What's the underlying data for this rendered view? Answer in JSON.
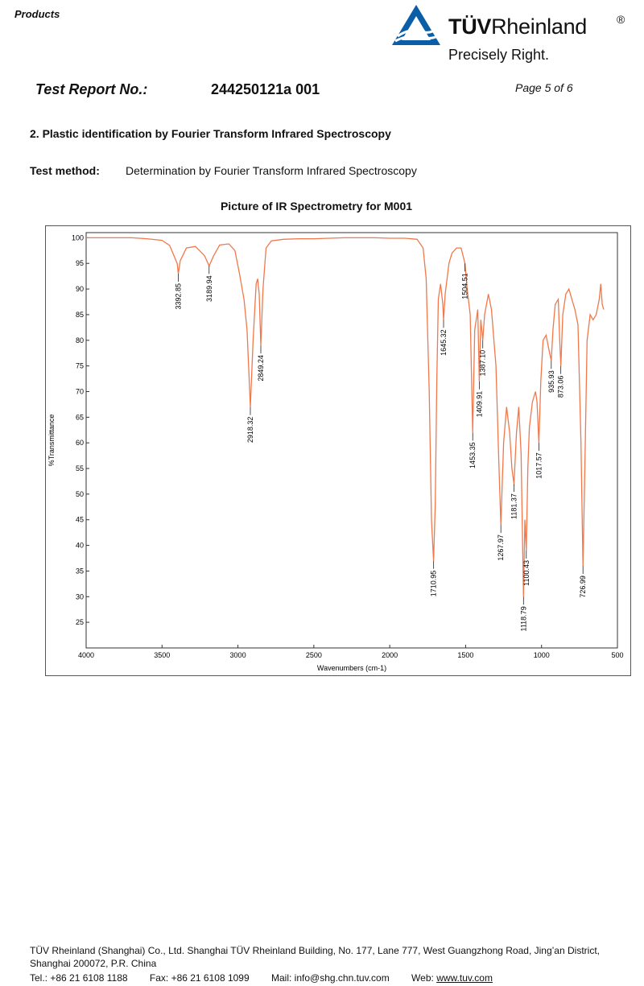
{
  "header": {
    "section": "Products",
    "logo": {
      "brand_bold": "TÜV",
      "brand_rest": "Rheinland",
      "registered": "®",
      "tagline": "Precisely Right.",
      "color": "#0a5ea8"
    }
  },
  "report": {
    "label": "Test Report No.:",
    "number": "244250121a 001",
    "page": "Page 5 of 6"
  },
  "section_title": "2. Plastic identification by Fourier Transform Infrared Spectroscopy",
  "method": {
    "label": "Test method:",
    "text": "Determination by Fourier Transform Infrared Spectroscopy"
  },
  "chart_caption": "Picture of IR Spectrometry for M001",
  "chart_data": {
    "type": "line",
    "title": "Picture of IR Spectrometry for M001",
    "xlabel": "Wavenumbers (cm-1)",
    "ylabel": "%Transmittance",
    "xlim": [
      4000,
      500
    ],
    "ylim": [
      20,
      101
    ],
    "x_reversed": true,
    "grid": false,
    "line_color": "#f0784b",
    "x_ticks": [
      4000,
      3500,
      3000,
      2500,
      2000,
      1500,
      1000,
      500
    ],
    "y_ticks": [
      25,
      30,
      35,
      40,
      45,
      50,
      55,
      60,
      65,
      70,
      75,
      80,
      85,
      90,
      95,
      100
    ],
    "series": [
      {
        "points": [
          [
            4000,
            100
          ],
          [
            3900,
            100
          ],
          [
            3800,
            100
          ],
          [
            3700,
            100
          ],
          [
            3600,
            99.8
          ],
          [
            3500,
            99.5
          ],
          [
            3450,
            98.5
          ],
          [
            3400,
            95
          ],
          [
            3392.85,
            93
          ],
          [
            3380,
            95.5
          ],
          [
            3340,
            98
          ],
          [
            3280,
            98.3
          ],
          [
            3220,
            96.5
          ],
          [
            3189.94,
            94.5
          ],
          [
            3160,
            96.5
          ],
          [
            3120,
            98.6
          ],
          [
            3060,
            98.8
          ],
          [
            3020,
            97.5
          ],
          [
            2990,
            93
          ],
          [
            2960,
            88
          ],
          [
            2940,
            82
          ],
          [
            2918.32,
            67
          ],
          [
            2900,
            80
          ],
          [
            2880,
            91
          ],
          [
            2870,
            92
          ],
          [
            2860,
            89
          ],
          [
            2849.24,
            79
          ],
          [
            2835,
            90
          ],
          [
            2815,
            98
          ],
          [
            2780,
            99.4
          ],
          [
            2700,
            99.7
          ],
          [
            2600,
            99.8
          ],
          [
            2500,
            99.8
          ],
          [
            2400,
            99.9
          ],
          [
            2300,
            100
          ],
          [
            2200,
            100
          ],
          [
            2100,
            100
          ],
          [
            2000,
            99.9
          ],
          [
            1900,
            99.9
          ],
          [
            1820,
            99.7
          ],
          [
            1780,
            98
          ],
          [
            1760,
            92
          ],
          [
            1740,
            70
          ],
          [
            1725,
            45
          ],
          [
            1710.95,
            37
          ],
          [
            1700,
            48
          ],
          [
            1690,
            72
          ],
          [
            1680,
            88
          ],
          [
            1665,
            91
          ],
          [
            1650,
            87
          ],
          [
            1645.32,
            84
          ],
          [
            1635,
            89
          ],
          [
            1610,
            95
          ],
          [
            1590,
            97
          ],
          [
            1560,
            98
          ],
          [
            1530,
            98
          ],
          [
            1504.51,
            95
          ],
          [
            1490,
            90
          ],
          [
            1470,
            85
          ],
          [
            1453.35,
            62
          ],
          [
            1440,
            82
          ],
          [
            1420,
            86
          ],
          [
            1409.91,
            72
          ],
          [
            1400,
            84
          ],
          [
            1387.1,
            80
          ],
          [
            1375,
            85
          ],
          [
            1350,
            89
          ],
          [
            1330,
            86
          ],
          [
            1300,
            75
          ],
          [
            1280,
            55
          ],
          [
            1267.97,
            44
          ],
          [
            1250,
            60
          ],
          [
            1230,
            67
          ],
          [
            1210,
            62
          ],
          [
            1195,
            55
          ],
          [
            1181.37,
            52
          ],
          [
            1165,
            62
          ],
          [
            1150,
            67
          ],
          [
            1135,
            58
          ],
          [
            1118.79,
            30
          ],
          [
            1110,
            45
          ],
          [
            1100.43,
            39
          ],
          [
            1090,
            55
          ],
          [
            1080,
            63
          ],
          [
            1060,
            68
          ],
          [
            1040,
            70
          ],
          [
            1030,
            68
          ],
          [
            1017.57,
            60
          ],
          [
            1005,
            72
          ],
          [
            990,
            80
          ],
          [
            970,
            81
          ],
          [
            950,
            78
          ],
          [
            935.93,
            76
          ],
          [
            925,
            82
          ],
          [
            910,
            87
          ],
          [
            890,
            88
          ],
          [
            880,
            80
          ],
          [
            873.06,
            75
          ],
          [
            860,
            85
          ],
          [
            840,
            89
          ],
          [
            820,
            90
          ],
          [
            800,
            88
          ],
          [
            780,
            86
          ],
          [
            760,
            83
          ],
          [
            740,
            60
          ],
          [
            726.99,
            36
          ],
          [
            715,
            55
          ],
          [
            700,
            80
          ],
          [
            680,
            85
          ],
          [
            660,
            84
          ],
          [
            640,
            85
          ],
          [
            620,
            88
          ],
          [
            610,
            91
          ],
          [
            600,
            87
          ],
          [
            590,
            86
          ]
        ]
      }
    ],
    "peaks": [
      {
        "x": 3392.85,
        "y": 93,
        "label": "3392.85"
      },
      {
        "x": 3189.94,
        "y": 94.5,
        "label": "3189.94"
      },
      {
        "x": 2918.32,
        "y": 67,
        "label": "2918.32"
      },
      {
        "x": 2849.24,
        "y": 79,
        "label": "2849.24"
      },
      {
        "x": 1710.95,
        "y": 37,
        "label": "1710.95"
      },
      {
        "x": 1645.32,
        "y": 84,
        "label": "1645.32"
      },
      {
        "x": 1504.51,
        "y": 95,
        "label": "1504.51"
      },
      {
        "x": 1453.35,
        "y": 62,
        "label": "1453.35"
      },
      {
        "x": 1409.91,
        "y": 72,
        "label": "1409.91"
      },
      {
        "x": 1387.1,
        "y": 80,
        "label": "1387.10"
      },
      {
        "x": 1267.97,
        "y": 44,
        "label": "1267.97"
      },
      {
        "x": 1181.37,
        "y": 52,
        "label": "1181.37"
      },
      {
        "x": 1118.79,
        "y": 30,
        "label": "1118.79"
      },
      {
        "x": 1100.43,
        "y": 39,
        "label": "1100.43"
      },
      {
        "x": 1017.57,
        "y": 60,
        "label": "1017.57"
      },
      {
        "x": 935.93,
        "y": 76,
        "label": "935.93"
      },
      {
        "x": 873.06,
        "y": 75,
        "label": "873.06"
      },
      {
        "x": 726.99,
        "y": 36,
        "label": "726.99"
      }
    ]
  },
  "footer": {
    "company": "TÜV Rheinland (Shanghai) Co., Ltd. Shanghai TÜV Rheinland Building, No. 177, Lane 777, West Guangzhong Road, Jing’an District, Shanghai 200072, P.R. China",
    "tel": "Tel.: +86 21 6108 1188",
    "fax": "Fax: +86 21 6108 1099",
    "mail": "Mail: info@shg.chn.tuv.com",
    "web_label": "Web:",
    "web": "www.tuv.com"
  }
}
